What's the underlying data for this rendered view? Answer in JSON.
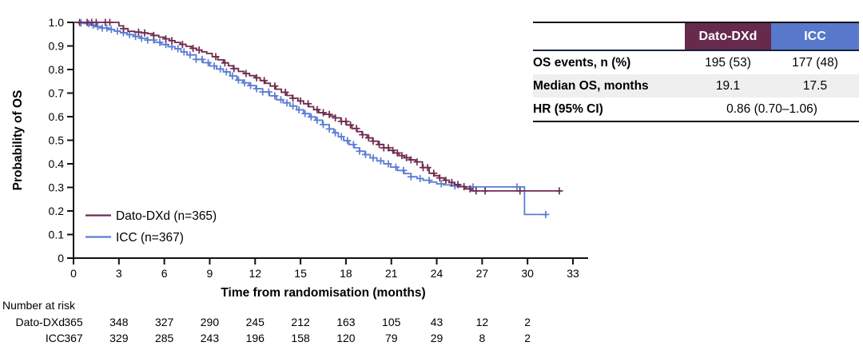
{
  "colors": {
    "dato": "#6F2B51",
    "icc": "#5B7DD3",
    "dato_header_bg": "#662A4D",
    "icc_header_bg": "#5878CC",
    "row_alt_bg": "#EFEFEF",
    "axis": "#111111",
    "text": "#000000"
  },
  "chart": {
    "ylabel": "Probability of OS",
    "xlabel": "Time from randomisation (months)",
    "legend": [
      {
        "key": "dato",
        "label": "Dato-DXd (n=365)"
      },
      {
        "key": "icc",
        "label": "ICC (n=367)"
      }
    ]
  },
  "chart_data": {
    "type": "line",
    "subtype": "kaplan-meier-step",
    "title": "",
    "xlabel": "Time from randomisation (months)",
    "ylabel": "Probability of OS",
    "xlim": [
      0,
      33
    ],
    "ylim": [
      0,
      1
    ],
    "grid": false,
    "legend_position": "inside-lower-left",
    "x_ticks": [
      0,
      3,
      6,
      9,
      12,
      15,
      18,
      21,
      24,
      27,
      30,
      33
    ],
    "y_ticks": [
      0,
      0.1,
      0.2,
      0.3,
      0.4,
      0.5,
      0.6,
      0.7,
      0.8,
      0.9,
      1.0
    ],
    "y_tick_labels": [
      "0",
      "0.1",
      "0.2",
      "0.3",
      "0.4",
      "0.5",
      "0.6",
      "0.7",
      "0.8",
      "0.9",
      "1.0"
    ],
    "series": [
      {
        "name": "Dato-DXd (n=365)",
        "color_key": "dato",
        "checkpoints": [
          [
            0,
            1.0
          ],
          [
            2.8,
            1.0
          ],
          [
            3.0,
            0.985
          ],
          [
            3.6,
            0.962
          ],
          [
            4.9,
            0.952
          ],
          [
            6.0,
            0.93
          ],
          [
            6.7,
            0.915
          ],
          [
            7.8,
            0.89
          ],
          [
            8.8,
            0.868
          ],
          [
            9.9,
            0.828
          ],
          [
            10.9,
            0.792
          ],
          [
            12.0,
            0.765
          ],
          [
            13.0,
            0.73
          ],
          [
            14.1,
            0.69
          ],
          [
            15.2,
            0.655
          ],
          [
            16.2,
            0.617
          ],
          [
            17.3,
            0.595
          ],
          [
            18.4,
            0.55
          ],
          [
            19.4,
            0.51
          ],
          [
            20.5,
            0.468
          ],
          [
            21.5,
            0.435
          ],
          [
            22.6,
            0.408
          ],
          [
            23.5,
            0.36
          ],
          [
            24.5,
            0.33
          ],
          [
            25.5,
            0.303
          ],
          [
            26.3,
            0.285
          ],
          [
            32.2,
            0.285
          ]
        ],
        "censor_months": [
          0.4,
          0.9,
          1.2,
          1.5,
          2.1,
          2.4,
          3.3,
          4.3,
          4.7,
          5.3,
          6.1,
          6.5,
          7.2,
          7.9,
          8.3,
          9.4,
          10.0,
          10.6,
          11.4,
          12.1,
          12.6,
          13.3,
          14.0,
          14.5,
          15.0,
          15.5,
          16.1,
          16.5,
          16.9,
          17.3,
          17.7,
          18.0,
          18.3,
          18.7,
          19.1,
          19.5,
          19.8,
          20.2,
          20.5,
          20.8,
          21.1,
          21.4,
          21.7,
          22.0,
          22.3,
          22.7,
          23.1,
          23.4,
          23.8,
          24.2,
          24.6,
          25.0,
          25.4,
          25.8,
          26.2,
          26.6,
          27.2,
          29.5,
          32.1
        ]
      },
      {
        "name": "ICC (n=367)",
        "color_key": "icc",
        "checkpoints": [
          [
            0,
            1.0
          ],
          [
            0.7,
            0.995
          ],
          [
            1.4,
            0.982
          ],
          [
            2.3,
            0.97
          ],
          [
            3.1,
            0.956
          ],
          [
            4.0,
            0.94
          ],
          [
            4.9,
            0.925
          ],
          [
            5.8,
            0.906
          ],
          [
            6.7,
            0.888
          ],
          [
            7.5,
            0.862
          ],
          [
            8.1,
            0.843
          ],
          [
            9.0,
            0.815
          ],
          [
            9.9,
            0.79
          ],
          [
            10.8,
            0.755
          ],
          [
            11.6,
            0.732
          ],
          [
            12.5,
            0.705
          ],
          [
            13.4,
            0.672
          ],
          [
            14.3,
            0.645
          ],
          [
            15.2,
            0.613
          ],
          [
            16.0,
            0.585
          ],
          [
            16.9,
            0.548
          ],
          [
            17.5,
            0.515
          ],
          [
            18.2,
            0.482
          ],
          [
            19.6,
            0.425
          ],
          [
            20.5,
            0.4
          ],
          [
            21.4,
            0.372
          ],
          [
            22.3,
            0.345
          ],
          [
            23.1,
            0.33
          ],
          [
            24.0,
            0.315
          ],
          [
            24.9,
            0.306
          ],
          [
            25.8,
            0.302
          ],
          [
            29.8,
            0.302
          ],
          [
            29.8,
            0.185
          ],
          [
            31.3,
            0.185
          ]
        ],
        "censor_months": [
          0.5,
          1.0,
          1.3,
          1.6,
          1.9,
          2.2,
          2.5,
          2.9,
          3.3,
          3.7,
          4.1,
          4.5,
          4.9,
          5.3,
          5.7,
          6.1,
          6.5,
          6.9,
          7.3,
          7.7,
          8.1,
          8.5,
          8.9,
          9.3,
          9.7,
          10.1,
          10.5,
          10.9,
          11.3,
          11.7,
          12.1,
          12.5,
          12.9,
          13.3,
          13.7,
          14.1,
          14.5,
          14.9,
          15.3,
          15.7,
          16.1,
          16.5,
          16.9,
          17.3,
          17.7,
          18.1,
          18.5,
          18.9,
          19.3,
          19.8,
          20.3,
          20.8,
          21.3,
          21.8,
          22.3,
          22.9,
          23.5,
          24.3,
          25.2,
          26.4,
          29.3,
          31.2
        ]
      }
    ]
  },
  "risk_table": {
    "title": "Number at risk",
    "months": [
      0,
      3,
      6,
      9,
      12,
      15,
      18,
      21,
      24,
      27,
      30
    ],
    "rows": [
      {
        "label": "Dato-DXd",
        "values": [
          "365",
          "348",
          "327",
          "290",
          "245",
          "212",
          "163",
          "105",
          "43",
          "12",
          "2"
        ]
      },
      {
        "label": "ICC",
        "values": [
          "367",
          "329",
          "285",
          "243",
          "196",
          "158",
          "120",
          "79",
          "29",
          "8",
          "2"
        ]
      }
    ]
  },
  "results_table": {
    "col_headers": [
      "Dato-DXd",
      "ICC"
    ],
    "rows": [
      {
        "label": "OS events, n (%)",
        "dato": "195 (53)",
        "icc": "177 (48)"
      },
      {
        "label": "Median OS, months",
        "dato": "19.1",
        "icc": "17.5"
      },
      {
        "label": "HR (95% CI)",
        "combined": "0.86 (0.70–1.06)"
      }
    ]
  }
}
